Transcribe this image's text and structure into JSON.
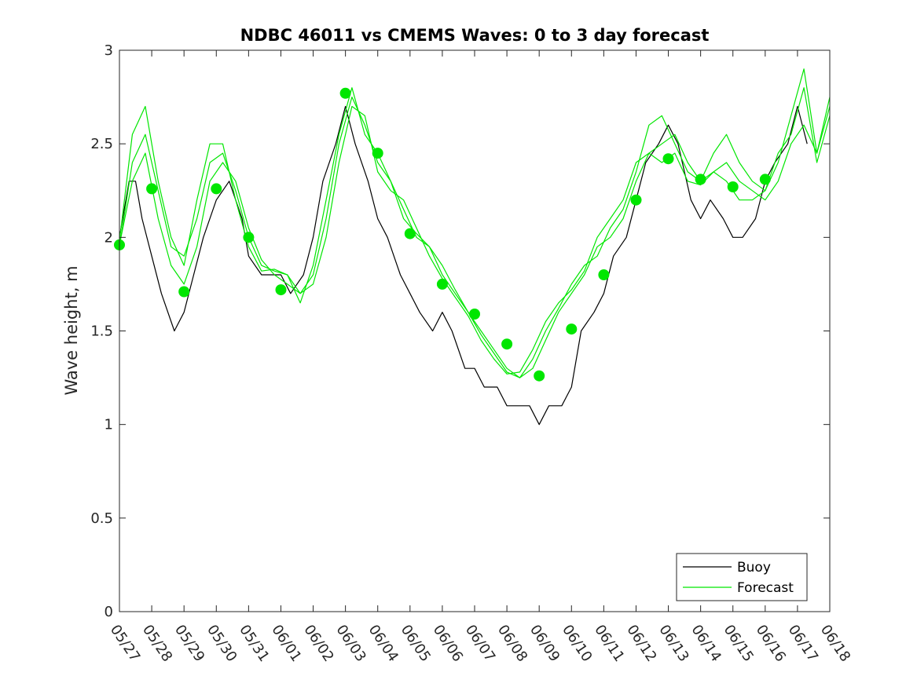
{
  "chart_data": {
    "type": "line",
    "title": "NDBC 46011 vs CMEMS Waves: 0 to 3 day forecast",
    "ylabel": "Wave height, m",
    "xlabel": "",
    "x_range": [
      0,
      22
    ],
    "ylim": [
      0,
      3
    ],
    "y_ticks": [
      0,
      0.5,
      1,
      1.5,
      2,
      2.5,
      3
    ],
    "y_tick_labels": [
      "0",
      "0.5",
      "1",
      "1.5",
      "2",
      "2.5",
      "3"
    ],
    "x_ticks": [
      0,
      1,
      2,
      3,
      4,
      5,
      6,
      7,
      8,
      9,
      10,
      11,
      12,
      13,
      14,
      15,
      16,
      17,
      18,
      19,
      20,
      21,
      22
    ],
    "x_tick_labels": [
      "05/27",
      "05/28",
      "05/29",
      "05/30",
      "05/31",
      "06/01",
      "06/02",
      "06/03",
      "06/04",
      "06/05",
      "06/06",
      "06/07",
      "06/08",
      "06/09",
      "06/10",
      "06/11",
      "06/12",
      "06/13",
      "06/14",
      "06/15",
      "06/16",
      "06/17",
      "06/18"
    ],
    "x_unit": "days from 05/27",
    "grid": false,
    "legend": {
      "position": "bottom-right",
      "entries": [
        "Buoy",
        "Forecast"
      ]
    },
    "colors": {
      "buoy": "#000000",
      "forecast": "#00e600"
    },
    "series": [
      {
        "name": "Buoy",
        "x": [
          0,
          0.3,
          0.5,
          0.7,
          1.0,
          1.3,
          1.7,
          2.0,
          2.3,
          2.6,
          3.0,
          3.4,
          3.8,
          4.0,
          4.4,
          4.7,
          5.0,
          5.3,
          5.7,
          6.0,
          6.3,
          6.7,
          7.0,
          7.3,
          7.7,
          8.0,
          8.3,
          8.7,
          9.0,
          9.3,
          9.7,
          10.0,
          10.3,
          10.7,
          11.0,
          11.3,
          11.7,
          12.0,
          12.3,
          12.7,
          13.0,
          13.3,
          13.7,
          14.0,
          14.3,
          14.7,
          15.0,
          15.3,
          15.7,
          16.0,
          16.3,
          16.7,
          17.0,
          17.3,
          17.7,
          18.0,
          18.3,
          18.7,
          19.0,
          19.3,
          19.7,
          20.0,
          20.3,
          20.7,
          21.0,
          21.3
        ],
        "values": [
          2.0,
          2.3,
          2.3,
          2.1,
          1.9,
          1.7,
          1.5,
          1.6,
          1.8,
          2.0,
          2.2,
          2.3,
          2.1,
          1.9,
          1.8,
          1.8,
          1.8,
          1.7,
          1.8,
          2.0,
          2.3,
          2.5,
          2.7,
          2.5,
          2.3,
          2.1,
          2.0,
          1.8,
          1.7,
          1.6,
          1.5,
          1.6,
          1.5,
          1.3,
          1.3,
          1.2,
          1.2,
          1.1,
          1.1,
          1.1,
          1.0,
          1.1,
          1.1,
          1.2,
          1.5,
          1.6,
          1.7,
          1.9,
          2.0,
          2.2,
          2.4,
          2.5,
          2.6,
          2.5,
          2.2,
          2.1,
          2.2,
          2.1,
          2.0,
          2.0,
          2.1,
          2.3,
          2.4,
          2.5,
          2.7,
          2.5
        ]
      },
      {
        "name": "Forecast",
        "x": [
          0,
          0.4,
          0.8,
          1.2,
          1.6,
          2.0,
          2.4,
          2.8,
          3.2,
          3.6,
          4.0,
          4.4,
          4.8,
          5.2,
          5.6,
          6.0,
          6.4,
          6.8,
          7.2,
          7.6,
          8.0,
          8.4,
          8.8,
          9.2,
          9.6,
          10.0,
          10.4,
          10.8,
          11.2,
          11.6,
          12.0,
          12.4,
          12.8,
          13.2,
          13.6,
          14.0,
          14.4,
          14.8,
          15.2,
          15.6,
          16.0,
          16.4,
          16.8,
          17.2,
          17.6,
          18.0,
          18.4,
          18.8,
          19.2,
          19.6,
          20.0,
          20.4,
          20.8,
          21.2,
          21.6,
          22.0
        ],
        "values": [
          1.95,
          2.4,
          2.55,
          2.25,
          1.95,
          1.9,
          2.1,
          2.4,
          2.45,
          2.25,
          2.0,
          1.85,
          1.82,
          1.8,
          1.7,
          1.8,
          2.1,
          2.5,
          2.75,
          2.6,
          2.4,
          2.3,
          2.15,
          2.0,
          1.95,
          1.8,
          1.7,
          1.6,
          1.5,
          1.4,
          1.3,
          1.25,
          1.3,
          1.45,
          1.6,
          1.7,
          1.8,
          1.95,
          2.0,
          2.1,
          2.3,
          2.45,
          2.5,
          2.55,
          2.4,
          2.3,
          2.35,
          2.4,
          2.3,
          2.25,
          2.2,
          2.3,
          2.5,
          2.6,
          2.45,
          2.7
        ]
      },
      {
        "name": "",
        "x": [
          0,
          0.4,
          0.8,
          1.2,
          1.6,
          2.0,
          2.4,
          2.8,
          3.2,
          3.6,
          4.0,
          4.4,
          4.8,
          5.2,
          5.6,
          6.0,
          6.4,
          6.8,
          7.2,
          7.6,
          8.0,
          8.4,
          8.8,
          9.2,
          9.6,
          10.0,
          10.4,
          10.8,
          11.2,
          11.6,
          12.0,
          12.4,
          12.8,
          13.2,
          13.6,
          14.0,
          14.4,
          14.8,
          15.2,
          15.6,
          16.0,
          16.4,
          16.8,
          17.2,
          17.6,
          18.0,
          18.4,
          18.8,
          19.2,
          19.6,
          20.0,
          20.4,
          20.8,
          21.2,
          21.6,
          22.0
        ],
        "values": [
          1.98,
          2.55,
          2.7,
          2.3,
          2.0,
          1.85,
          2.2,
          2.5,
          2.5,
          2.2,
          1.95,
          1.82,
          1.83,
          1.8,
          1.65,
          1.85,
          2.2,
          2.55,
          2.8,
          2.55,
          2.45,
          2.3,
          2.1,
          2.02,
          1.95,
          1.85,
          1.72,
          1.6,
          1.48,
          1.38,
          1.28,
          1.25,
          1.35,
          1.5,
          1.62,
          1.75,
          1.85,
          1.9,
          2.05,
          2.15,
          2.35,
          2.6,
          2.65,
          2.5,
          2.35,
          2.3,
          2.45,
          2.55,
          2.4,
          2.3,
          2.25,
          2.4,
          2.65,
          2.9,
          2.45,
          2.75
        ]
      },
      {
        "name": "",
        "x": [
          0,
          0.4,
          0.8,
          1.2,
          1.6,
          2.0,
          2.4,
          2.8,
          3.2,
          3.6,
          4.0,
          4.4,
          4.8,
          5.2,
          5.6,
          6.0,
          6.4,
          6.8,
          7.2,
          7.6,
          8.0,
          8.4,
          8.8,
          9.2,
          9.6,
          10.0,
          10.4,
          10.8,
          11.2,
          11.6,
          12.0,
          12.4,
          12.8,
          13.2,
          13.6,
          14.0,
          14.4,
          14.8,
          15.2,
          15.6,
          16.0,
          16.4,
          16.8,
          17.2,
          17.6,
          18.0,
          18.4,
          18.8,
          19.2,
          19.6,
          20.0,
          20.4,
          20.8,
          21.2,
          21.6,
          22.0
        ],
        "values": [
          1.96,
          2.3,
          2.45,
          2.1,
          1.85,
          1.75,
          1.95,
          2.3,
          2.4,
          2.3,
          2.05,
          1.88,
          1.8,
          1.75,
          1.7,
          1.75,
          2.0,
          2.4,
          2.7,
          2.65,
          2.35,
          2.25,
          2.2,
          2.05,
          1.9,
          1.78,
          1.68,
          1.58,
          1.45,
          1.35,
          1.27,
          1.28,
          1.4,
          1.55,
          1.65,
          1.72,
          1.82,
          2.0,
          2.1,
          2.2,
          2.4,
          2.45,
          2.4,
          2.45,
          2.3,
          2.28,
          2.35,
          2.3,
          2.2,
          2.2,
          2.25,
          2.45,
          2.55,
          2.8,
          2.4,
          2.65
        ]
      }
    ],
    "markers": {
      "x": [
        0,
        1,
        2,
        3,
        4,
        5,
        7,
        8,
        9,
        10,
        11,
        12,
        13,
        14,
        15,
        16,
        17,
        18,
        19,
        20
      ],
      "values": [
        1.96,
        2.26,
        1.71,
        2.26,
        2.0,
        1.72,
        2.77,
        2.45,
        2.02,
        1.75,
        1.59,
        1.43,
        1.26,
        1.51,
        1.8,
        2.2,
        2.42,
        2.31,
        2.27,
        2.31
      ]
    }
  }
}
